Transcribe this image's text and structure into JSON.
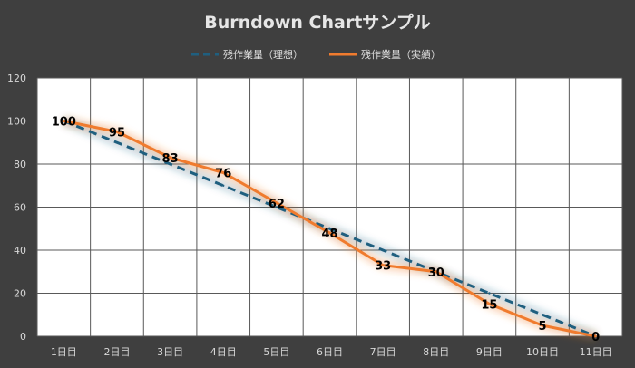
{
  "chart_data": {
    "type": "line",
    "title": "Burndown Chartサンプル",
    "xlabel": "",
    "ylabel": "",
    "categories": [
      "1日目",
      "2日目",
      "3日目",
      "4日目",
      "5日目",
      "6日目",
      "7日目",
      "8日目",
      "9日目",
      "10日目",
      "11日目"
    ],
    "ylim": [
      0,
      120
    ],
    "yticks": [
      0,
      20,
      40,
      60,
      80,
      100,
      120
    ],
    "grid": true,
    "legend_position": "top",
    "series": [
      {
        "name": "残作業量（理想）",
        "style": "dashed",
        "color": "#1f5f7f",
        "values": [
          100,
          90,
          80,
          70,
          60,
          50,
          40,
          30,
          20,
          10,
          0
        ]
      },
      {
        "name": "残作業量（実績）",
        "style": "solid",
        "color": "#f07b2e",
        "values": [
          100,
          95,
          83,
          76,
          62,
          48,
          33,
          30,
          15,
          5,
          0
        ]
      }
    ],
    "data_labels": [
      100,
      95,
      83,
      76,
      62,
      48,
      33,
      30,
      15,
      5,
      0
    ]
  },
  "colors": {
    "background": "#3f3f3f",
    "plot_background": "#ffffff",
    "gridline": "#595959"
  }
}
